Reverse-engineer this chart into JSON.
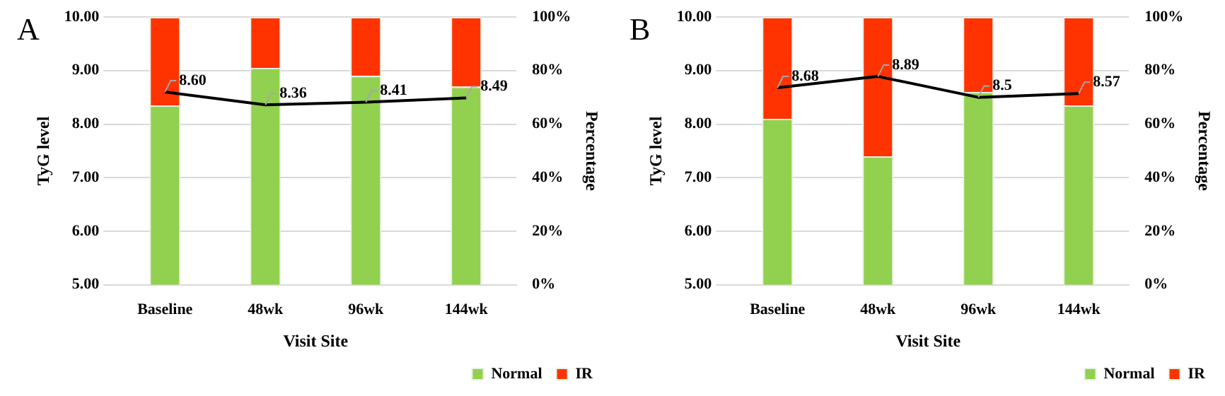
{
  "chart_data": [
    {
      "type": "bar",
      "title": "A",
      "xlabel": "Visit Site",
      "ylabel": "TyG level",
      "y2label": "Percentage",
      "categories": [
        "Baseline",
        "48wk",
        "96wk",
        "144wk"
      ],
      "stacked": true,
      "grid": "y",
      "legend": "bottom right",
      "marker": "none",
      "ylim": [
        5,
        10
      ],
      "yticks": [
        {
          "value": 5,
          "label": "5.00"
        },
        {
          "value": 6,
          "label": "6.00"
        },
        {
          "value": 7,
          "label": "7.00"
        },
        {
          "value": 8,
          "label": "8.00"
        },
        {
          "value": 9,
          "label": "9.00"
        },
        {
          "value": 10,
          "label": "10.00"
        }
      ],
      "y2lim": [
        0,
        100
      ],
      "y2ticks": [
        {
          "value": 0,
          "label": "0%"
        },
        {
          "value": 20,
          "label": "20%"
        },
        {
          "value": 40,
          "label": "40%"
        },
        {
          "value": 60,
          "label": "60%"
        },
        {
          "value": 80,
          "label": "80%"
        },
        {
          "value": 100,
          "label": "100%"
        }
      ],
      "series": [
        {
          "name": "Normal",
          "color": "#92d050",
          "axis": "y2",
          "values": [
            67,
            81,
            78,
            74
          ]
        },
        {
          "name": "IR",
          "color": "#ff3300",
          "axis": "y2",
          "values": [
            33,
            19,
            22,
            26
          ]
        },
        {
          "type": "line",
          "color": "#000000",
          "axis": "y",
          "values": [
            8.6,
            8.36,
            8.41,
            8.49
          ],
          "value_labels": [
            "8.60",
            "8.36",
            "8.41",
            "8.49"
          ]
        }
      ]
    },
    {
      "type": "bar",
      "title": "B",
      "xlabel": "Visit Site",
      "ylabel": "TyG level",
      "y2label": "Percentage",
      "categories": [
        "Baseline",
        "48wk",
        "96wk",
        "144wk"
      ],
      "stacked": true,
      "grid": "y",
      "legend": "bottom right",
      "marker": "none",
      "ylim": [
        5,
        10
      ],
      "yticks": [
        {
          "value": 5,
          "label": "5.00"
        },
        {
          "value": 6,
          "label": "6.00"
        },
        {
          "value": 7,
          "label": "7.00"
        },
        {
          "value": 8,
          "label": "8.00"
        },
        {
          "value": 9,
          "label": "9.00"
        },
        {
          "value": 10,
          "label": "10.00"
        }
      ],
      "y2lim": [
        0,
        100
      ],
      "y2ticks": [
        {
          "value": 0,
          "label": "0%"
        },
        {
          "value": 20,
          "label": "20%"
        },
        {
          "value": 40,
          "label": "40%"
        },
        {
          "value": 60,
          "label": "60%"
        },
        {
          "value": 80,
          "label": "80%"
        },
        {
          "value": 100,
          "label": "100%"
        }
      ],
      "series": [
        {
          "name": "Normal",
          "color": "#92d050",
          "axis": "y2",
          "values": [
            62,
            48,
            72,
            67
          ]
        },
        {
          "name": "IR",
          "color": "#ff3300",
          "axis": "y2",
          "values": [
            38,
            52,
            28,
            33
          ]
        },
        {
          "type": "line",
          "color": "#000000",
          "axis": "y",
          "values": [
            8.68,
            8.89,
            8.5,
            8.57
          ],
          "value_labels": [
            "8.68",
            "8.89",
            "8.5",
            "8.57"
          ]
        }
      ]
    }
  ]
}
